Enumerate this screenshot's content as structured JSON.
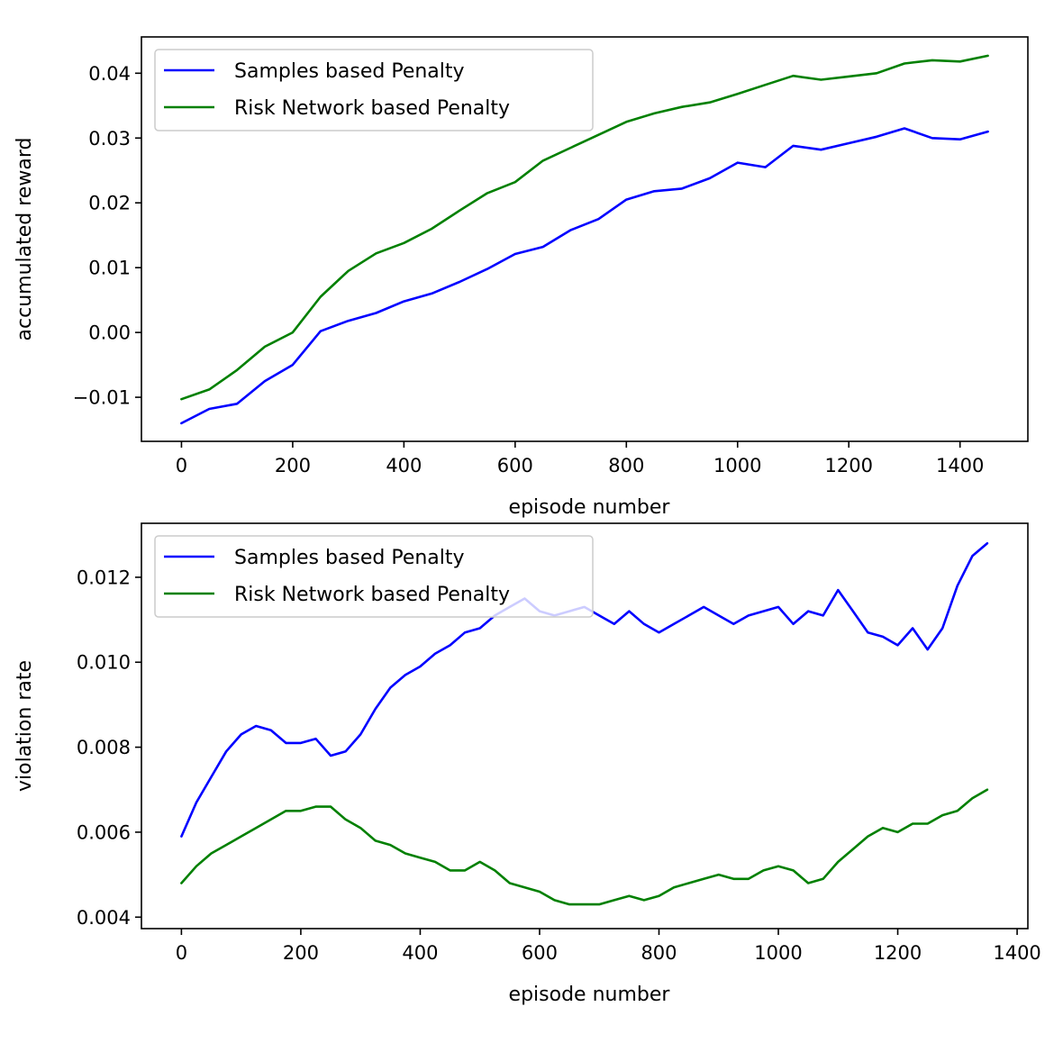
{
  "chart_data": [
    {
      "type": "line",
      "xlabel": "episode number",
      "ylabel": "accumulated reward",
      "xlim": [
        -72,
        1522
      ],
      "ylim": [
        -0.0168,
        0.0456
      ],
      "xticks": [
        0,
        200,
        400,
        600,
        800,
        1000,
        1200,
        1400
      ],
      "xtick_labels": [
        "0",
        "200",
        "400",
        "600",
        "800",
        "1000",
        "1200",
        "1400"
      ],
      "yticks": [
        -0.01,
        0.0,
        0.01,
        0.02,
        0.03,
        0.04
      ],
      "ytick_labels": [
        "−0.01",
        "0.00",
        "0.01",
        "0.02",
        "0.03",
        "0.04"
      ],
      "legend_position": "upper-left",
      "series": [
        {
          "name": "Samples based Penalty",
          "color": "#0000ff",
          "x": [
            0,
            50,
            100,
            150,
            200,
            250,
            300,
            350,
            400,
            450,
            500,
            550,
            600,
            650,
            700,
            750,
            800,
            850,
            900,
            950,
            1000,
            1050,
            1100,
            1150,
            1200,
            1250,
            1300,
            1350,
            1400,
            1450
          ],
          "y": [
            -0.014,
            -0.0118,
            -0.011,
            -0.0075,
            -0.005,
            0.0002,
            0.0018,
            0.003,
            0.0048,
            0.006,
            0.0078,
            0.0098,
            0.0121,
            0.0132,
            0.0158,
            0.0175,
            0.0205,
            0.0218,
            0.0222,
            0.0238,
            0.0262,
            0.0255,
            0.0288,
            0.0282,
            0.0292,
            0.0302,
            0.0315,
            0.03,
            0.0298,
            0.031
          ]
        },
        {
          "name": "Risk Network based Penalty",
          "color": "#008000",
          "x": [
            0,
            50,
            100,
            150,
            200,
            250,
            300,
            350,
            400,
            450,
            500,
            550,
            600,
            650,
            700,
            750,
            800,
            850,
            900,
            950,
            1000,
            1050,
            1100,
            1150,
            1200,
            1250,
            1300,
            1350,
            1400,
            1450
          ],
          "y": [
            -0.0103,
            -0.0088,
            -0.0058,
            -0.0022,
            0.0,
            0.0055,
            0.0095,
            0.0122,
            0.0138,
            0.016,
            0.0188,
            0.0215,
            0.0232,
            0.0265,
            0.0285,
            0.0305,
            0.0325,
            0.0338,
            0.0348,
            0.0355,
            0.0368,
            0.0382,
            0.0396,
            0.039,
            0.0395,
            0.04,
            0.0415,
            0.042,
            0.0418,
            0.0427
          ]
        }
      ]
    },
    {
      "type": "line",
      "xlabel": "episode number",
      "ylabel": "violation rate",
      "xlim": [
        -67,
        1418
      ],
      "ylim": [
        0.00373,
        0.01327
      ],
      "xticks": [
        0,
        200,
        400,
        600,
        800,
        1000,
        1200,
        1400
      ],
      "xtick_labels": [
        "0",
        "200",
        "400",
        "600",
        "800",
        "1000",
        "1200",
        "1400"
      ],
      "yticks": [
        0.004,
        0.006,
        0.008,
        0.01,
        0.012
      ],
      "ytick_labels": [
        "0.004",
        "0.006",
        "0.008",
        "0.010",
        "0.012"
      ],
      "legend_position": "upper-left",
      "series": [
        {
          "name": "Samples based Penalty",
          "color": "#0000ff",
          "x": [
            0,
            25,
            50,
            75,
            100,
            125,
            150,
            175,
            200,
            225,
            250,
            275,
            300,
            325,
            350,
            375,
            400,
            425,
            450,
            475,
            500,
            525,
            550,
            575,
            600,
            625,
            650,
            675,
            700,
            725,
            750,
            775,
            800,
            825,
            850,
            875,
            900,
            925,
            950,
            975,
            1000,
            1025,
            1050,
            1075,
            1100,
            1125,
            1150,
            1175,
            1200,
            1225,
            1250,
            1275,
            1300,
            1325,
            1350
          ],
          "y": [
            0.0059,
            0.0067,
            0.0073,
            0.0079,
            0.0083,
            0.0085,
            0.0084,
            0.0081,
            0.0081,
            0.0082,
            0.0078,
            0.0079,
            0.0083,
            0.0089,
            0.0094,
            0.0097,
            0.0099,
            0.0102,
            0.0104,
            0.0107,
            0.0108,
            0.0111,
            0.0113,
            0.0115,
            0.0112,
            0.0111,
            0.0112,
            0.0113,
            0.0111,
            0.0109,
            0.0112,
            0.0109,
            0.0107,
            0.0109,
            0.0111,
            0.0113,
            0.0111,
            0.0109,
            0.0111,
            0.0112,
            0.0113,
            0.0109,
            0.0112,
            0.0111,
            0.0117,
            0.0112,
            0.0107,
            0.0106,
            0.0104,
            0.0108,
            0.0103,
            0.0108,
            0.0118,
            0.0125,
            0.0128
          ]
        },
        {
          "name": "Risk Network based Penalty",
          "color": "#008000",
          "x": [
            0,
            25,
            50,
            75,
            100,
            125,
            150,
            175,
            200,
            225,
            250,
            275,
            300,
            325,
            350,
            375,
            400,
            425,
            450,
            475,
            500,
            525,
            550,
            575,
            600,
            625,
            650,
            675,
            700,
            725,
            750,
            775,
            800,
            825,
            850,
            875,
            900,
            925,
            950,
            975,
            1000,
            1025,
            1050,
            1075,
            1100,
            1125,
            1150,
            1175,
            1200,
            1225,
            1250,
            1275,
            1300,
            1325,
            1350
          ],
          "y": [
            0.0048,
            0.0052,
            0.0055,
            0.0057,
            0.0059,
            0.0061,
            0.0063,
            0.0065,
            0.0065,
            0.0066,
            0.0066,
            0.0063,
            0.0061,
            0.0058,
            0.0057,
            0.0055,
            0.0054,
            0.0053,
            0.0051,
            0.0051,
            0.0053,
            0.0051,
            0.0048,
            0.0047,
            0.0046,
            0.0044,
            0.0043,
            0.0043,
            0.0043,
            0.0044,
            0.0045,
            0.0044,
            0.0045,
            0.0047,
            0.0048,
            0.0049,
            0.005,
            0.0049,
            0.0049,
            0.0051,
            0.0052,
            0.0051,
            0.0048,
            0.0049,
            0.0053,
            0.0056,
            0.0059,
            0.0061,
            0.006,
            0.0062,
            0.0062,
            0.0064,
            0.0065,
            0.0068,
            0.007
          ]
        }
      ]
    }
  ]
}
